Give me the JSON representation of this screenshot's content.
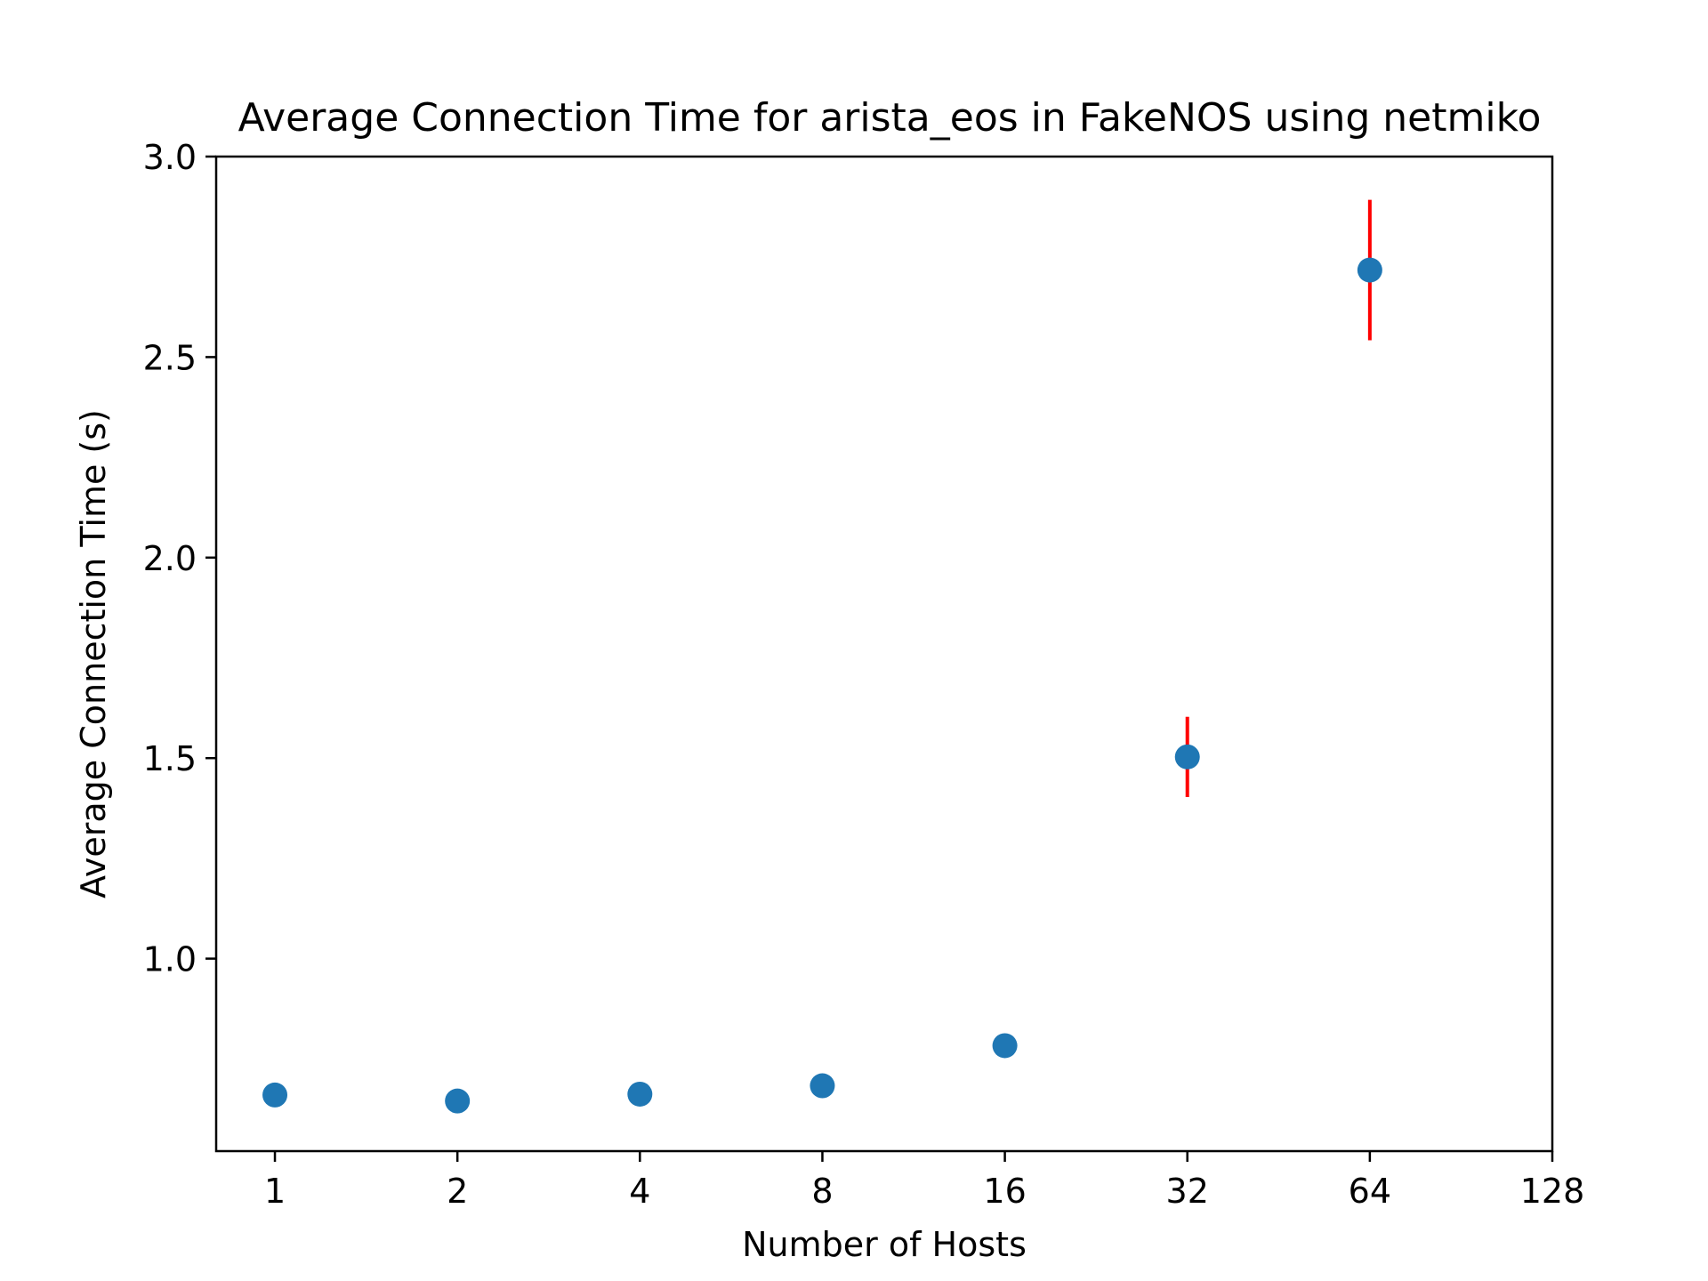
{
  "chart_data": {
    "type": "scatter",
    "title": "Average Connection Time for arista_eos in FakeNOS using netmiko",
    "xlabel": "Number of Hosts",
    "ylabel": "Average Connection Time (s)",
    "x_scale": "log2",
    "xlim": [
      0.8,
      128
    ],
    "ylim": [
      0.52,
      3.0
    ],
    "x_ticks": [
      1,
      2,
      4,
      8,
      16,
      32,
      64,
      128
    ],
    "x_tick_labels": [
      "1",
      "2",
      "4",
      "8",
      "16",
      "32",
      "64",
      "128"
    ],
    "y_ticks": [
      1.0,
      1.5,
      2.0,
      2.5,
      3.0
    ],
    "y_tick_labels": [
      "1.0",
      "1.5",
      "2.0",
      "2.5",
      "3.0"
    ],
    "grid": false,
    "series": [
      {
        "x": [
          1,
          2,
          4,
          8,
          16,
          32,
          64
        ],
        "y": [
          0.66,
          0.645,
          0.662,
          0.683,
          0.783,
          1.503,
          2.717
        ],
        "yerr": [
          0.0,
          0.0,
          0.0,
          0.0,
          0.0,
          0.1,
          0.175
        ],
        "color": "#1f77b4",
        "error_color": "#ff0000"
      }
    ]
  }
}
